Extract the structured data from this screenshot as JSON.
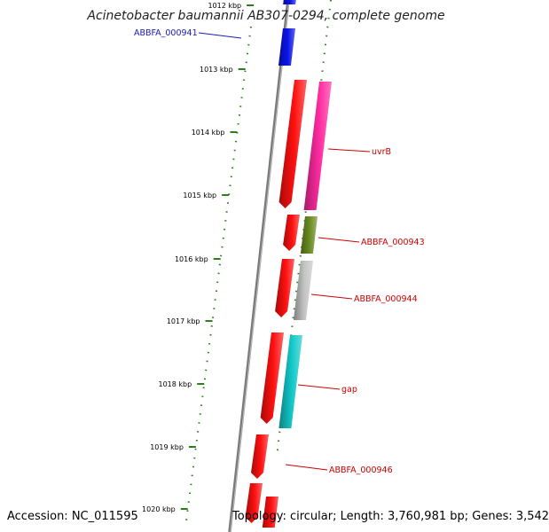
{
  "title": "Acinetobacter baumannii AB307-0294, complete genome",
  "footer": {
    "accession": "Accession: NC_011595",
    "summary": "Topology: circular; Length: 3,760,981 bp; Genes: 3,542"
  },
  "scale": {
    "tick_labels": [
      "1012 kbp",
      "1013 kbp",
      "1014 kbp",
      "1015 kbp",
      "1016 kbp",
      "1017 kbp",
      "1018 kbp",
      "1019 kbp",
      "1020 kbp"
    ],
    "tick_color": "#2e7d1e"
  },
  "genes": [
    {
      "name": "ABBFA_000941",
      "strand": "forward",
      "color": "#0a14e6",
      "label_color": "#1a1ab8"
    },
    {
      "name": "uvrB",
      "strand": "forward",
      "color": "#ff2aa0",
      "label_color": "#cc0000"
    },
    {
      "name": "ABBFA_000943",
      "strand": "forward",
      "color": "#6b8e23",
      "label_color": "#cc0000"
    },
    {
      "name": "ABBFA_000944",
      "strand": "forward",
      "color": "#c4c4c4",
      "label_color": "#cc0000"
    },
    {
      "name": "gap",
      "strand": "forward",
      "color": "#12c8c8",
      "label_color": "#cc0000"
    },
    {
      "name": "ABBFA_000946",
      "strand": "forward",
      "color": "#ff1010",
      "label_color": "#cc0000"
    }
  ],
  "cds_color": "#ff1010",
  "backbone_color": "#7a7a7a"
}
